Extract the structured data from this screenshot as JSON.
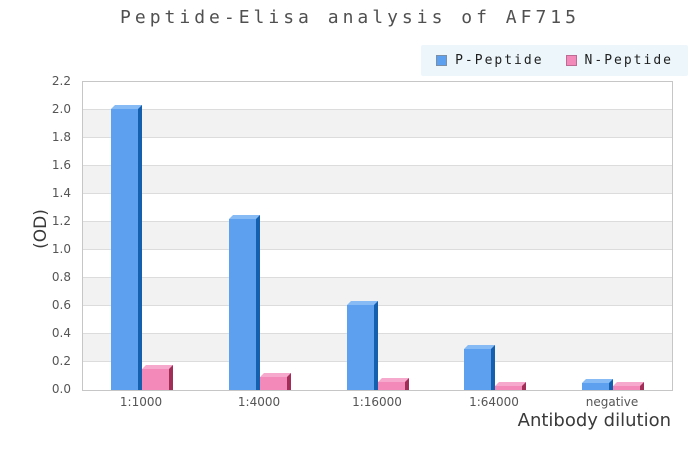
{
  "title": "Peptide-Elisa analysis of AF715",
  "legend": {
    "background": "#edf7fb",
    "items": [
      "P-Peptide",
      "N-Peptide"
    ]
  },
  "chart_data": {
    "type": "bar",
    "title": "Peptide-Elisa analysis of AF715",
    "categories": [
      "1:1000",
      "1:4000",
      "1:16000",
      "1:64000",
      "negative"
    ],
    "series": [
      {
        "name": "P-Peptide",
        "values": [
          2.01,
          1.22,
          0.61,
          0.29,
          0.05
        ],
        "color_face": "#5CA0EF",
        "color_top": "#86BBF5",
        "color_side": "#1460AE",
        "legend_border": "#7b90a6"
      },
      {
        "name": "N-Peptide",
        "values": [
          0.15,
          0.09,
          0.06,
          0.03,
          0.03
        ],
        "color_face": "#F289B9",
        "color_top": "#F6A8CD",
        "color_side": "#A12E57",
        "legend_border": "#bd6b93"
      }
    ],
    "xlabel": "Antibody dilution",
    "ylabel": "(OD)",
    "ylim": [
      0,
      2.2
    ],
    "ytick_step": 0.2,
    "grid": true,
    "legend_position": "top-right",
    "stripe_colors": [
      "#ffffff",
      "#f2f2f2"
    ],
    "gridline_color": "#dcdcdc",
    "plot_border_color": "#c6c6c6",
    "legend_bg": "#edf7fb"
  }
}
